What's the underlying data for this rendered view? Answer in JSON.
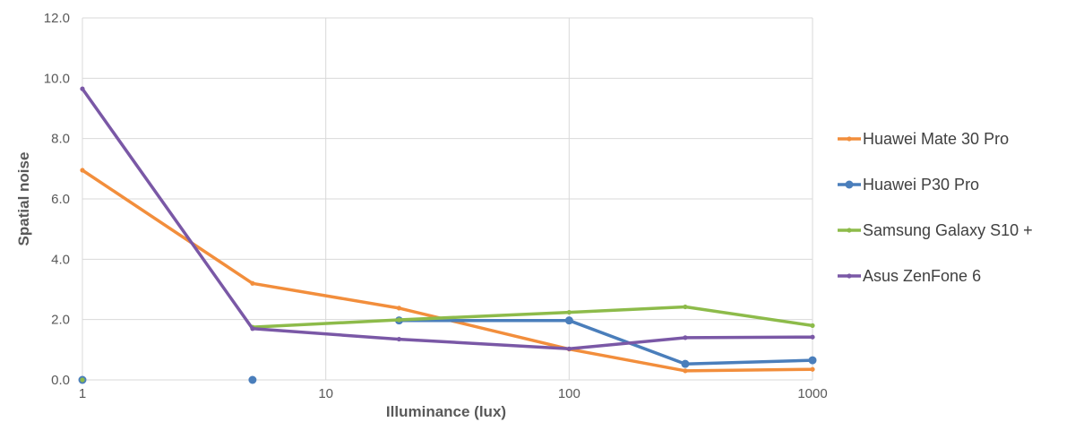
{
  "chart_data": {
    "type": "line",
    "xlabel": "Illuminance (lux)",
    "ylabel": "Spatial noise",
    "xscale": "log",
    "xlim": [
      1,
      1000
    ],
    "ylim": [
      0,
      12
    ],
    "xticks": [
      {
        "value": 1,
        "label": "1"
      },
      {
        "value": 10,
        "label": "10"
      },
      {
        "value": 100,
        "label": "100"
      },
      {
        "value": 1000,
        "label": "1000"
      }
    ],
    "yticks": [
      {
        "value": 0,
        "label": "0.0"
      },
      {
        "value": 2,
        "label": "2.0"
      },
      {
        "value": 4,
        "label": "4.0"
      },
      {
        "value": 6,
        "label": "6.0"
      },
      {
        "value": 8,
        "label": "8.0"
      },
      {
        "value": 10,
        "label": "10.0"
      },
      {
        "value": 12,
        "label": "12.0"
      }
    ],
    "grid": true,
    "legend_position": "right",
    "series": [
      {
        "name": "Huawei Mate 30 Pro",
        "color": "#F28E3C",
        "marker": "small",
        "points": [
          [
            1,
            6.95
          ],
          [
            5,
            3.2
          ],
          [
            20,
            2.38
          ],
          [
            100,
            1.02
          ],
          [
            300,
            0.3
          ],
          [
            1000,
            0.35
          ]
        ]
      },
      {
        "name": "Huawei P30 Pro",
        "color": "#4A7EBB",
        "marker": "large",
        "points": [
          [
            1,
            0.0
          ],
          [
            5,
            0.0
          ]
        ],
        "points_2": [
          [
            20,
            1.97
          ],
          [
            100,
            1.97
          ],
          [
            300,
            0.53
          ],
          [
            1000,
            0.65
          ]
        ]
      },
      {
        "name": "Samsung Galaxy S10 +",
        "color": "#8DBB4A",
        "marker": "small",
        "points": [
          [
            1,
            0.0
          ]
        ],
        "points_2": [
          [
            5,
            1.75
          ],
          [
            20,
            1.99
          ],
          [
            100,
            2.24
          ],
          [
            300,
            2.42
          ],
          [
            1000,
            1.8
          ]
        ]
      },
      {
        "name": "Asus ZenFone 6",
        "color": "#7A58A6",
        "marker": "small",
        "points": [
          [
            1,
            9.65
          ],
          [
            5,
            1.7
          ],
          [
            20,
            1.35
          ],
          [
            100,
            1.03
          ],
          [
            300,
            1.4
          ],
          [
            1000,
            1.42
          ]
        ]
      }
    ]
  }
}
